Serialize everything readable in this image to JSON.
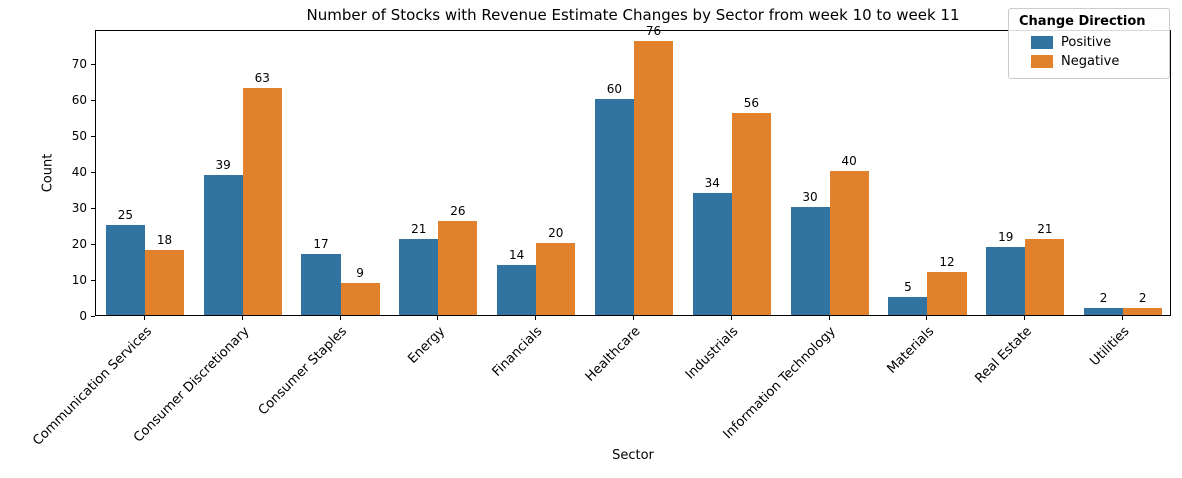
{
  "chart_data": {
    "type": "bar",
    "title": "Number of Stocks with Revenue Estimate Changes by Sector from week 10 to week 11",
    "xlabel": "Sector",
    "ylabel": "Count",
    "categories": [
      "Communication Services",
      "Consumer Discretionary",
      "Consumer Staples",
      "Energy",
      "Financials",
      "Healthcare",
      "Industrials",
      "Information Technology",
      "Materials",
      "Real Estate",
      "Utilities"
    ],
    "series": [
      {
        "name": "Positive",
        "color": "#3274a1",
        "values": [
          25,
          39,
          17,
          21,
          14,
          60,
          34,
          30,
          5,
          19,
          2
        ]
      },
      {
        "name": "Negative",
        "color": "#e1812c",
        "values": [
          18,
          63,
          9,
          26,
          20,
          76,
          56,
          40,
          12,
          21,
          2
        ]
      }
    ],
    "legend_title": "Change Direction",
    "legend_position": "upper right",
    "ylim": [
      0,
      79.4
    ],
    "yticks": [
      0,
      10,
      20,
      30,
      40,
      50,
      60,
      70
    ],
    "grid": false,
    "bar_value_labels": true
  }
}
